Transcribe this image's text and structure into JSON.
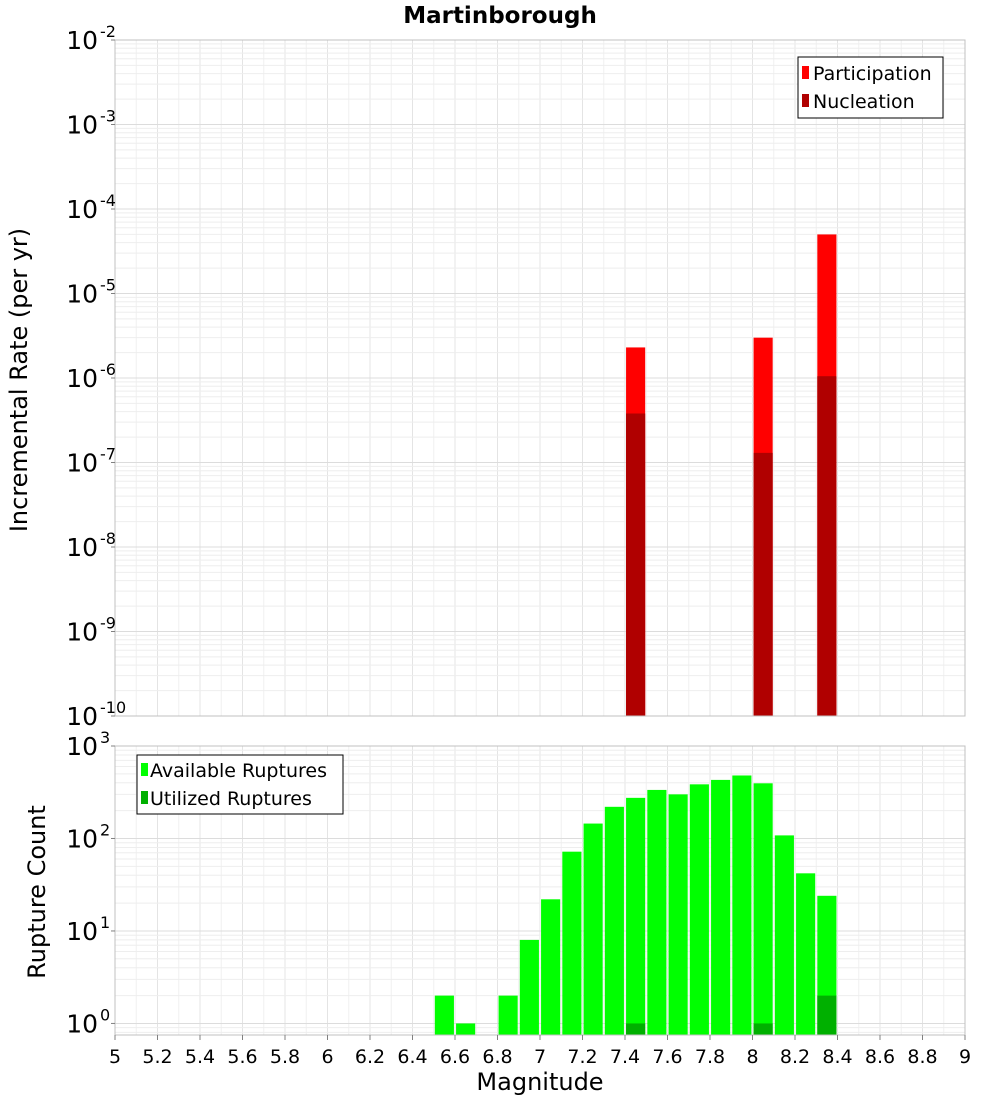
{
  "chart_data": [
    {
      "type": "bar",
      "title": "Martinborough",
      "xlabel": "",
      "ylabel": "Incremental Rate (per yr)",
      "yscale": "log",
      "ylim": [
        1e-10,
        0.01
      ],
      "xlim": [
        5,
        9
      ],
      "y_ticks": [
        {
          "base": "10",
          "exp": "-10"
        },
        {
          "base": "10",
          "exp": "-9"
        },
        {
          "base": "10",
          "exp": "-8"
        },
        {
          "base": "10",
          "exp": "-7"
        },
        {
          "base": "10",
          "exp": "-6"
        },
        {
          "base": "10",
          "exp": "-5"
        },
        {
          "base": "10",
          "exp": "-4"
        },
        {
          "base": "10",
          "exp": "-3"
        },
        {
          "base": "10",
          "exp": "-2"
        }
      ],
      "grid": true,
      "legend_position": "top-right",
      "series": [
        {
          "name": "Participation",
          "color": "#ff0000",
          "x": [
            7.45,
            8.05,
            8.35
          ],
          "values": [
            2.3e-06,
            3e-06,
            5e-05
          ]
        },
        {
          "name": "Nucleation",
          "color": "#b00000",
          "x": [
            7.45,
            8.05,
            8.35
          ],
          "values": [
            3.8e-07,
            1.3e-07,
            1.05e-06
          ]
        }
      ]
    },
    {
      "type": "bar",
      "title": "",
      "xlabel": "Magnitude",
      "ylabel": "Rupture Count",
      "yscale": "log",
      "ylim": [
        0.75,
        1000
      ],
      "xlim": [
        5,
        9
      ],
      "y_ticks": [
        {
          "base": "10",
          "exp": "0"
        },
        {
          "base": "10",
          "exp": "1"
        },
        {
          "base": "10",
          "exp": "2"
        },
        {
          "base": "10",
          "exp": "3"
        }
      ],
      "x_ticks": [
        "5",
        "5.2",
        "5.4",
        "5.6",
        "5.8",
        "6",
        "6.2",
        "6.4",
        "6.6",
        "6.8",
        "7",
        "7.2",
        "7.4",
        "7.6",
        "7.8",
        "8",
        "8.2",
        "8.4",
        "8.6",
        "8.8",
        "9"
      ],
      "grid": true,
      "legend_position": "top-left",
      "series": [
        {
          "name": "Available Ruptures",
          "color": "#00ff00",
          "x": [
            6.55,
            6.65,
            6.85,
            6.95,
            7.05,
            7.15,
            7.25,
            7.35,
            7.45,
            7.55,
            7.65,
            7.75,
            7.85,
            7.95,
            8.05,
            8.15,
            8.25,
            8.35
          ],
          "values": [
            2,
            1,
            2,
            8,
            22,
            72,
            145,
            220,
            275,
            335,
            300,
            385,
            430,
            480,
            395,
            108,
            42,
            24
          ]
        },
        {
          "name": "Utilized Ruptures",
          "color": "#00b000",
          "x": [
            7.45,
            8.05,
            8.35
          ],
          "values": [
            1,
            1,
            2
          ]
        }
      ]
    }
  ]
}
